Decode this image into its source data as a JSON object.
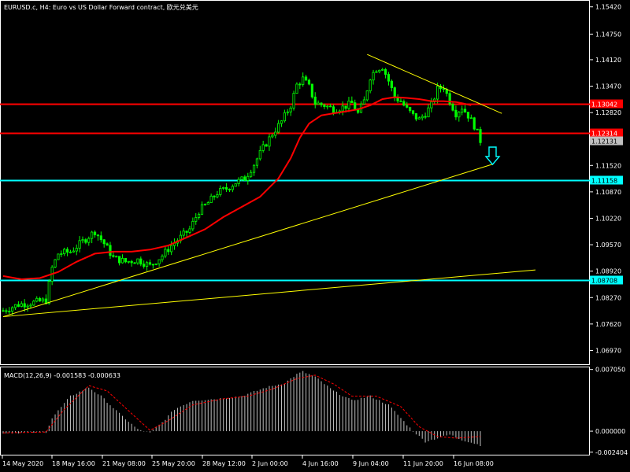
{
  "window": {
    "symbol_title": "EURUSD.c, H4:  Euro vs US Dollar Forward contract, 欧元兑美元",
    "macd_title": "MACD(12,26,9) -0.001583 -0.000633"
  },
  "colors": {
    "background": "#000000",
    "frame": "#ffffff",
    "bull_candle": "#00ff00",
    "bear_candle": "#00ff00",
    "moving_average": "#ff0000",
    "red_level": "#ff0000",
    "cyan_level": "#00ffff",
    "trendline": "#ffff00",
    "macd_histogram": "#c0c0c0",
    "macd_signal": "#ff0000",
    "arrow": "#00ffff"
  },
  "price_axis": {
    "ticks": [
      "1.15420",
      "1.14750",
      "1.14120",
      "1.13470",
      "1.12820",
      "1.12131",
      "1.11520",
      "1.10870",
      "1.10220",
      "1.09570",
      "1.08920",
      "1.08270",
      "1.07620",
      "1.06970"
    ],
    "min": 1.0665,
    "max": 1.1555
  },
  "macd_axis": {
    "ticks": [
      "0.007050",
      "0.000000",
      "-0.002404"
    ],
    "min": -0.0026,
    "max": 0.0072
  },
  "time_axis": {
    "labels": [
      "14 May 2020",
      "18 May 16:00",
      "21 May 08:00",
      "25 May 20:00",
      "28 May 12:00",
      "2 Jun 00:00",
      "4 Jun 16:00",
      "9 Jun 04:00",
      "11 Jun 20:00",
      "16 Jun 08:00"
    ]
  },
  "levels": {
    "red": [
      {
        "price": 1.13042,
        "label": "1.13042"
      },
      {
        "price": 1.12314,
        "label": "1.12314"
      }
    ],
    "cyan": [
      {
        "price": 1.11158,
        "label": "1.11158"
      },
      {
        "price": 1.08708,
        "label": "1.08708"
      }
    ],
    "current_price": {
      "price": 1.12131,
      "label": "1.12131"
    }
  },
  "chart_data": {
    "type": "candlestick",
    "title": "EURUSD.c, H4:  Euro vs US Dollar Forward contract, 欧元兑美元",
    "bar_count": 157,
    "close_path": [
      [
        0,
        1.0795
      ],
      [
        5,
        1.081
      ],
      [
        10,
        1.0815
      ],
      [
        14,
        1.082
      ],
      [
        16,
        1.09
      ],
      [
        18,
        1.0935
      ],
      [
        22,
        1.094
      ],
      [
        26,
        1.0965
      ],
      [
        30,
        1.099
      ],
      [
        33,
        1.096
      ],
      [
        36,
        1.0925
      ],
      [
        40,
        1.0915
      ],
      [
        44,
        1.092
      ],
      [
        48,
        1.0905
      ],
      [
        52,
        1.093
      ],
      [
        55,
        1.0955
      ],
      [
        58,
        1.0975
      ],
      [
        61,
        1.0995
      ],
      [
        64,
        1.104
      ],
      [
        67,
        1.106
      ],
      [
        70,
        1.1085
      ],
      [
        73,
        1.1095
      ],
      [
        76,
        1.111
      ],
      [
        79,
        1.112
      ],
      [
        82,
        1.1155
      ],
      [
        85,
        1.1195
      ],
      [
        88,
        1.123
      ],
      [
        91,
        1.126
      ],
      [
        94,
        1.13
      ],
      [
        96,
        1.135
      ],
      [
        98,
        1.1365
      ],
      [
        100,
        1.1345
      ],
      [
        102,
        1.1305
      ],
      [
        105,
        1.13
      ],
      [
        108,
        1.129
      ],
      [
        111,
        1.1295
      ],
      [
        114,
        1.1305
      ],
      [
        116,
        1.128
      ],
      [
        118,
        1.131
      ],
      [
        120,
        1.137
      ],
      [
        122,
        1.139
      ],
      [
        124,
        1.1395
      ],
      [
        126,
        1.136
      ],
      [
        128,
        1.132
      ],
      [
        130,
        1.131
      ],
      [
        132,
        1.129
      ],
      [
        134,
        1.1275
      ],
      [
        136,
        1.1265
      ],
      [
        138,
        1.128
      ],
      [
        140,
        1.13
      ],
      [
        142,
        1.134
      ],
      [
        144,
        1.1345
      ],
      [
        146,
        1.131
      ],
      [
        148,
        1.128
      ],
      [
        150,
        1.1295
      ],
      [
        152,
        1.1275
      ],
      [
        154,
        1.125
      ],
      [
        156,
        1.1213
      ]
    ],
    "moving_average": [
      [
        0,
        1.088
      ],
      [
        6,
        1.0872
      ],
      [
        12,
        1.0875
      ],
      [
        18,
        1.089
      ],
      [
        24,
        1.0915
      ],
      [
        30,
        1.0935
      ],
      [
        36,
        1.094
      ],
      [
        42,
        1.094
      ],
      [
        48,
        1.0945
      ],
      [
        54,
        1.0955
      ],
      [
        60,
        1.0975
      ],
      [
        66,
        1.0995
      ],
      [
        72,
        1.1025
      ],
      [
        78,
        1.105
      ],
      [
        84,
        1.1075
      ],
      [
        90,
        1.112
      ],
      [
        94,
        1.117
      ],
      [
        97,
        1.122
      ],
      [
        100,
        1.1255
      ],
      [
        104,
        1.1275
      ],
      [
        108,
        1.128
      ],
      [
        112,
        1.1285
      ],
      [
        116,
        1.129
      ],
      [
        120,
        1.13
      ],
      [
        124,
        1.1315
      ],
      [
        128,
        1.132
      ],
      [
        132,
        1.1318
      ],
      [
        136,
        1.1315
      ],
      [
        140,
        1.131
      ],
      [
        144,
        1.131
      ],
      [
        148,
        1.1308
      ],
      [
        150,
        1.1305
      ],
      [
        153,
        1.13
      ]
    ],
    "trendlines": [
      {
        "from": [
          0,
          1.078
        ],
        "to": [
          160,
          1.1155
        ]
      },
      {
        "from": [
          0,
          1.078
        ],
        "to": [
          174,
          1.0895
        ]
      },
      {
        "from": [
          119,
          1.1425
        ],
        "to": [
          163,
          1.128
        ]
      }
    ],
    "macd": {
      "histogram": [
        [
          0,
          -0.0002
        ],
        [
          14,
          -0.0001
        ],
        [
          16,
          0.0015
        ],
        [
          22,
          0.004
        ],
        [
          28,
          0.005
        ],
        [
          32,
          0.004
        ],
        [
          38,
          0.002
        ],
        [
          44,
          0.0002
        ],
        [
          48,
          -0.0002
        ],
        [
          52,
          0.001
        ],
        [
          56,
          0.0025
        ],
        [
          62,
          0.0035
        ],
        [
          70,
          0.0037
        ],
        [
          78,
          0.004
        ],
        [
          86,
          0.005
        ],
        [
          92,
          0.0055
        ],
        [
          96,
          0.0065
        ],
        [
          98,
          0.0068
        ],
        [
          102,
          0.0062
        ],
        [
          108,
          0.0046
        ],
        [
          114,
          0.0035
        ],
        [
          120,
          0.004
        ],
        [
          126,
          0.003
        ],
        [
          130,
          0.0015
        ],
        [
          134,
          0.0
        ],
        [
          138,
          -0.0012
        ],
        [
          142,
          -0.0008
        ],
        [
          146,
          -0.0004
        ],
        [
          150,
          -0.001
        ],
        [
          156,
          -0.0016
        ]
      ],
      "signal": [
        [
          0,
          -0.0002
        ],
        [
          14,
          -0.0001
        ],
        [
          20,
          0.0025
        ],
        [
          28,
          0.0052
        ],
        [
          34,
          0.0046
        ],
        [
          42,
          0.002
        ],
        [
          48,
          0.0001
        ],
        [
          54,
          0.0012
        ],
        [
          62,
          0.003
        ],
        [
          72,
          0.0037
        ],
        [
          80,
          0.004
        ],
        [
          88,
          0.0048
        ],
        [
          96,
          0.006
        ],
        [
          102,
          0.0064
        ],
        [
          108,
          0.0054
        ],
        [
          114,
          0.004
        ],
        [
          122,
          0.004
        ],
        [
          130,
          0.0028
        ],
        [
          136,
          0.0005
        ],
        [
          142,
          -0.0006
        ],
        [
          148,
          -0.0008
        ],
        [
          156,
          -0.0006
        ]
      ]
    }
  }
}
